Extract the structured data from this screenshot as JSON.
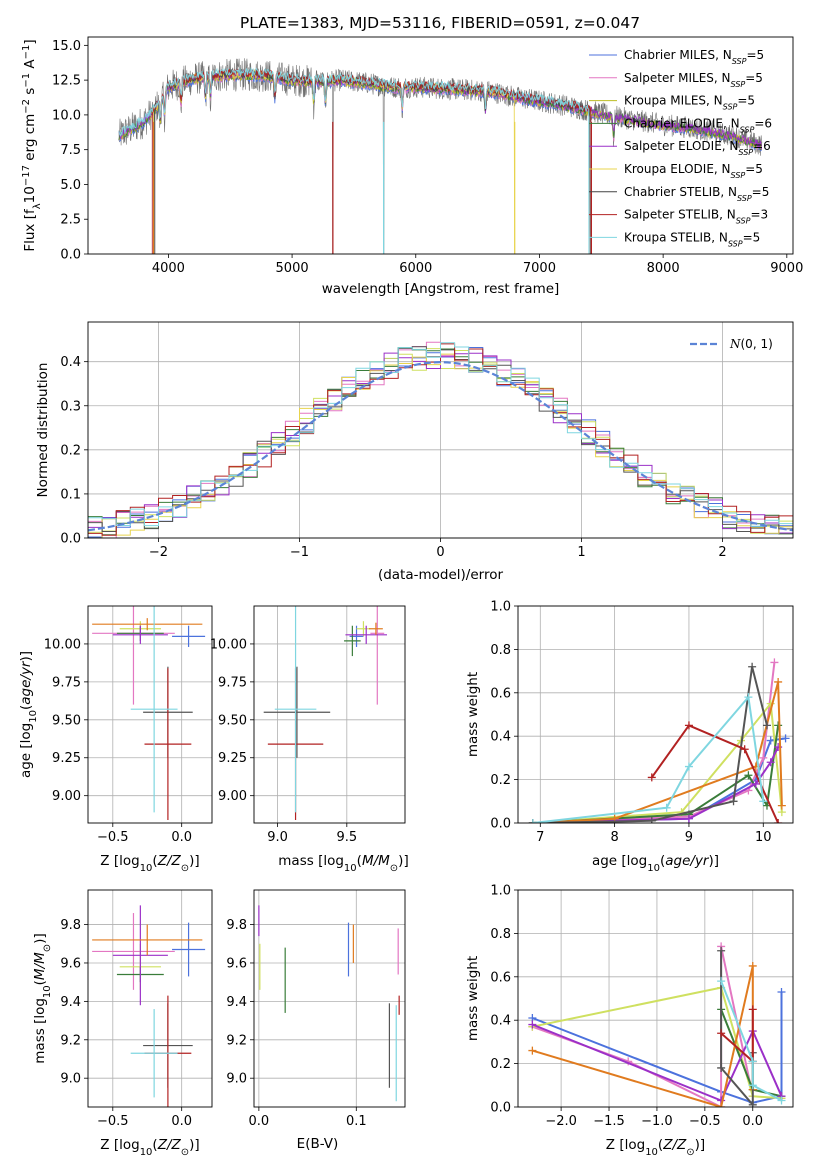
{
  "figure": {
    "title": "PLATE=1383, MJD=53116, FIBERID=0591, z=0.047"
  },
  "chart_data": [
    {
      "id": "spectrum",
      "type": "line",
      "title": "PLATE=1383, MJD=53116, FIBERID=0591, z=0.047",
      "xlabel": "wavelength [Angstrom, rest frame]",
      "ylabel": "Flux [f_λ10^-17 erg cm^-2 s^-1 A^-1]",
      "xlim": [
        3350,
        9050
      ],
      "ylim": [
        0,
        15.6
      ],
      "xticks": [
        4000,
        5000,
        6000,
        7000,
        8000,
        9000
      ],
      "yticks": [
        0.0,
        2.5,
        5.0,
        7.5,
        10.0,
        12.5,
        15.0
      ],
      "legend_position": "top-right",
      "legend": [
        {
          "label": "Chabrier MILES, N",
          "sub": "SSP",
          "suffix": "=5",
          "color": "#4c72dd"
        },
        {
          "label": "Salpeter MILES, N",
          "sub": "SSP",
          "suffix": "=5",
          "color": "#e377c2"
        },
        {
          "label": "Kroupa MILES, N",
          "sub": "SSP",
          "suffix": "=5",
          "color": "#bcbd22"
        },
        {
          "label": "Chabrier ELODIE, N",
          "sub": "SSP",
          "suffix": "=6",
          "color": "#3a7d3a"
        },
        {
          "label": "Salpeter ELODIE, N",
          "sub": "SSP",
          "suffix": "=6",
          "color": "#9b30c8"
        },
        {
          "label": "Kroupa ELODIE, N",
          "sub": "SSP",
          "suffix": "=5",
          "color": "#e8d44d"
        },
        {
          "label": "Chabrier STELIB, N",
          "sub": "SSP",
          "suffix": "=5",
          "color": "#444444"
        },
        {
          "label": "Salpeter STELIB, N",
          "sub": "SSP",
          "suffix": "=3",
          "color": "#b22222"
        },
        {
          "label": "Kroupa STELIB, N",
          "sub": "SSP",
          "suffix": "=5",
          "color": "#7fd6e0"
        }
      ],
      "continuum": {
        "x": [
          3600,
          3700,
          3800,
          3900,
          4000,
          4200,
          4400,
          4600,
          4800,
          5000,
          5200,
          5400,
          5600,
          5800,
          6000,
          6200,
          6400,
          6600,
          6800,
          7000,
          7200,
          7400,
          7600,
          7800,
          8000,
          8200,
          8400,
          8600,
          8800
        ],
        "y": [
          8.5,
          9.0,
          9.5,
          10.5,
          12.0,
          12.6,
          12.8,
          12.9,
          12.8,
          12.5,
          12.4,
          12.5,
          12.3,
          12.0,
          12.0,
          11.9,
          11.8,
          11.7,
          11.3,
          11.0,
          10.7,
          10.3,
          9.9,
          9.6,
          9.3,
          9.1,
          8.8,
          8.4,
          7.8
        ]
      },
      "data_range": [
        3600,
        8800
      ],
      "model_ends": {
        "Salpeter STELIB": [
          3870,
          7420
        ],
        "Chabrier STELIB": [
          3890,
          7410
        ],
        "Kroupa ELODIE": [
          3880,
          6800
        ],
        "Kroupa STELIB": [
          3600,
          7400
        ]
      },
      "deep_dips": [
        3880,
        5330,
        5740,
        6800,
        7420
      ]
    },
    {
      "id": "residuals",
      "type": "histogram",
      "xlabel": "(data-model)/error",
      "ylabel": "Normed distribution",
      "xlim": [
        -2.5,
        2.5
      ],
      "ylim": [
        0,
        0.49
      ],
      "xticks": [
        -2,
        -1,
        0,
        1,
        2
      ],
      "yticks": [
        0.0,
        0.1,
        0.2,
        0.3,
        0.4
      ],
      "grid": true,
      "legend_position": "top-right",
      "reference_curve": {
        "label": "N(0,1)",
        "mu": 0,
        "sigma": 1,
        "color": "#5b84d6"
      },
      "bin_width": 0.1,
      "series_colors": [
        "#4c72dd",
        "#e377c2",
        "#cfe060",
        "#3a7d3a",
        "#9b30c8",
        "#e8d44d",
        "#555555",
        "#b22222",
        "#7fd6e0"
      ]
    },
    {
      "id": "age_vs_Z",
      "type": "errorbar",
      "xlabel": "Z [log10(Z/Z☉)]",
      "ylabel": "age [log10(age/yr)]",
      "xlim": [
        -0.68,
        0.22
      ],
      "ylim": [
        8.82,
        10.25
      ],
      "xticks": [
        -0.5,
        0.0
      ],
      "yticks": [
        9.0,
        9.25,
        9.5,
        9.75,
        10.0
      ],
      "points": [
        {
          "x": 0.05,
          "xerr": 0.12,
          "y": 10.05,
          "yerr": 0.07,
          "color": "#4c72dd"
        },
        {
          "x": -0.35,
          "xerr": 0.3,
          "y": 10.07,
          "yerr": 0.47,
          "color": "#e377c2"
        },
        {
          "x": -0.3,
          "xerr": 0.15,
          "y": 10.1,
          "yerr": 0.05,
          "color": "#cfe060"
        },
        {
          "x": -0.3,
          "xerr": 0.17,
          "y": 10.07,
          "yerr": 0.05,
          "color": "#3a7d3a"
        },
        {
          "x": -0.3,
          "xerr": 0.2,
          "y": 10.06,
          "yerr": 0.06,
          "color": "#9b30c8"
        },
        {
          "x": -0.25,
          "xerr": 0.4,
          "y": 10.13,
          "yerr": 0.04,
          "color": "#e07b1f"
        },
        {
          "x": -0.1,
          "xerr": 0.18,
          "y": 9.55,
          "yerr": 0.3,
          "color": "#555555"
        },
        {
          "x": -0.1,
          "xerr": 0.17,
          "y": 9.34,
          "yerr": 0.5,
          "color": "#b22222"
        },
        {
          "x": -0.2,
          "xerr": 0.17,
          "y": 9.57,
          "yerr": 0.68,
          "color": "#7fd6e0"
        }
      ]
    },
    {
      "id": "age_vs_mass",
      "type": "errorbar",
      "xlabel": "mass [log10(M/M☉)]",
      "ylabel": "",
      "xlim": [
        8.83,
        9.92
      ],
      "ylim": [
        8.82,
        10.25
      ],
      "xticks": [
        9.0,
        9.5
      ],
      "yticks": [
        9.0,
        9.25,
        9.5,
        9.75,
        10.0
      ],
      "points": [
        {
          "x": 9.57,
          "xerr": 0.05,
          "y": 10.05,
          "yerr": 0.07,
          "color": "#4c72dd"
        },
        {
          "x": 9.72,
          "xerr": 0.05,
          "y": 10.07,
          "yerr": 0.47,
          "color": "#e377c2"
        },
        {
          "x": 9.62,
          "xerr": 0.05,
          "y": 10.1,
          "yerr": 0.05,
          "color": "#cfe060"
        },
        {
          "x": 9.54,
          "xerr": 0.06,
          "y": 10.02,
          "yerr": 0.1,
          "color": "#3a7d3a"
        },
        {
          "x": 9.64,
          "xerr": 0.15,
          "y": 10.06,
          "yerr": 0.06,
          "color": "#9b30c8"
        },
        {
          "x": 9.71,
          "xerr": 0.05,
          "y": 10.1,
          "yerr": 0.04,
          "color": "#e07b1f"
        },
        {
          "x": 9.14,
          "xerr": 0.24,
          "y": 9.55,
          "yerr": 0.3,
          "color": "#555555"
        },
        {
          "x": 9.13,
          "xerr": 0.2,
          "y": 9.34,
          "yerr": 0.5,
          "color": "#b22222"
        },
        {
          "x": 9.13,
          "xerr": 0.15,
          "y": 9.57,
          "yerr": 0.68,
          "color": "#7fd6e0"
        }
      ]
    },
    {
      "id": "mass_weight_vs_age",
      "type": "line",
      "xlabel": "age [log10(age/yr)]",
      "ylabel": "mass weight",
      "xlim": [
        6.7,
        10.4
      ],
      "ylim": [
        0,
        1
      ],
      "xticks": [
        7,
        8,
        9,
        10
      ],
      "yticks": [
        0.0,
        0.2,
        0.4,
        0.6,
        0.8,
        1.0
      ],
      "grid": true,
      "series": [
        {
          "color": "#4c72dd",
          "x": [
            6.9,
            9.0,
            9.9,
            10.1,
            10.3
          ],
          "y": [
            0.0,
            0.02,
            0.2,
            0.38,
            0.39
          ]
        },
        {
          "color": "#e377c2",
          "x": [
            6.9,
            9.0,
            9.8,
            10.0,
            10.15
          ],
          "y": [
            0.0,
            0.03,
            0.15,
            0.3,
            0.74
          ]
        },
        {
          "color": "#cfe060",
          "x": [
            6.9,
            8.9,
            9.7,
            10.1,
            10.25
          ],
          "y": [
            0.0,
            0.05,
            0.38,
            0.55,
            0.05
          ]
        },
        {
          "color": "#3a7d3a",
          "x": [
            6.9,
            9.0,
            9.8,
            10.05,
            10.2
          ],
          "y": [
            0.0,
            0.04,
            0.22,
            0.08,
            0.45
          ]
        },
        {
          "color": "#9b30c8",
          "x": [
            6.9,
            9.0,
            9.9,
            10.1,
            10.2
          ],
          "y": [
            0.0,
            0.02,
            0.18,
            0.28,
            0.35
          ]
        },
        {
          "color": "#e07b1f",
          "x": [
            6.9,
            8.0,
            9.9,
            10.2,
            10.25
          ],
          "y": [
            0.0,
            0.02,
            0.26,
            0.65,
            0.08
          ]
        },
        {
          "color": "#555555",
          "x": [
            6.9,
            8.5,
            9.6,
            9.85,
            10.05
          ],
          "y": [
            0.0,
            0.01,
            0.1,
            0.72,
            0.45
          ]
        },
        {
          "color": "#b22222",
          "x": [
            8.5,
            9.0,
            9.75,
            10.2
          ],
          "y": [
            0.21,
            0.45,
            0.34,
            0.0
          ]
        },
        {
          "color": "#7fd6e0",
          "x": [
            6.9,
            8.7,
            9.0,
            9.8,
            10.0
          ],
          "y": [
            0.0,
            0.07,
            0.26,
            0.58,
            0.1
          ]
        }
      ]
    },
    {
      "id": "mass_vs_Z",
      "type": "errorbar",
      "xlabel": "Z [log10(Z/Z☉)]",
      "ylabel": "mass [log10(M/M☉)]",
      "xlim": [
        -0.68,
        0.22
      ],
      "ylim": [
        8.85,
        9.98
      ],
      "xticks": [
        -0.5,
        0.0
      ],
      "yticks": [
        9.0,
        9.2,
        9.4,
        9.6,
        9.8
      ],
      "points": [
        {
          "x": 0.05,
          "xerr": 0.12,
          "y": 9.67,
          "yerr": 0.14,
          "color": "#4c72dd"
        },
        {
          "x": -0.35,
          "xerr": 0.3,
          "y": 9.66,
          "yerr": 0.2,
          "color": "#e377c2"
        },
        {
          "x": -0.3,
          "xerr": 0.15,
          "y": 9.58,
          "yerr": 0.12,
          "color": "#cfe060"
        },
        {
          "x": -0.3,
          "xerr": 0.17,
          "y": 9.54,
          "yerr": 0.04,
          "color": "#3a7d3a"
        },
        {
          "x": -0.3,
          "xerr": 0.2,
          "y": 9.64,
          "yerr": 0.26,
          "color": "#9b30c8"
        },
        {
          "x": -0.25,
          "xerr": 0.4,
          "y": 9.72,
          "yerr": 0.08,
          "color": "#e07b1f"
        },
        {
          "x": -0.1,
          "xerr": 0.18,
          "y": 9.17,
          "yerr": 0.22,
          "color": "#555555"
        },
        {
          "x": -0.1,
          "xerr": 0.17,
          "y": 9.13,
          "yerr": 0.3,
          "color": "#b22222"
        },
        {
          "x": -0.2,
          "xerr": 0.17,
          "y": 9.13,
          "yerr": 0.23,
          "color": "#7fd6e0"
        }
      ]
    },
    {
      "id": "mass_vs_ebv",
      "type": "errorbar",
      "xlabel": "E(B-V)",
      "ylabel": "",
      "xlim": [
        -0.005,
        0.15
      ],
      "ylim": [
        8.85,
        9.98
      ],
      "xticks": [
        0.0,
        0.1
      ],
      "yticks": [
        9.0,
        9.2,
        9.4,
        9.6,
        9.8
      ],
      "points": [
        {
          "x": 0.092,
          "xerr": 0,
          "y": 9.67,
          "yerr": 0.14,
          "color": "#4c72dd"
        },
        {
          "x": 0.143,
          "xerr": 0,
          "y": 9.66,
          "yerr": 0.12,
          "color": "#e377c2"
        },
        {
          "x": 0.001,
          "xerr": 0,
          "y": 9.58,
          "yerr": 0.12,
          "color": "#cfe060"
        },
        {
          "x": 0.027,
          "xerr": 0,
          "y": 9.51,
          "yerr": 0.17,
          "color": "#3a7d3a"
        },
        {
          "x": 0.0,
          "xerr": 0,
          "y": 9.82,
          "yerr": 0.08,
          "color": "#9b30c8"
        },
        {
          "x": 0.097,
          "xerr": 0,
          "y": 9.7,
          "yerr": 0.1,
          "color": "#e07b1f"
        },
        {
          "x": 0.134,
          "xerr": 0,
          "y": 9.17,
          "yerr": 0.22,
          "color": "#555555"
        },
        {
          "x": 0.144,
          "xerr": 0,
          "y": 9.38,
          "yerr": 0.05,
          "color": "#b22222"
        },
        {
          "x": 0.141,
          "xerr": 0,
          "y": 9.13,
          "yerr": 0.25,
          "color": "#7fd6e0"
        }
      ]
    },
    {
      "id": "mass_weight_vs_Z",
      "type": "line",
      "xlabel": "Z [log10(Z/Z☉)]",
      "ylabel": "mass weight",
      "xlim": [
        -2.45,
        0.42
      ],
      "ylim": [
        0,
        1
      ],
      "xticks": [
        -2.0,
        -1.5,
        -1.0,
        -0.5,
        0.0
      ],
      "yticks": [
        0.0,
        0.2,
        0.4,
        0.6,
        0.8,
        1.0
      ],
      "grid": true,
      "series": [
        {
          "color": "#4c72dd",
          "x": [
            -2.3,
            -0.33,
            0.0,
            0.3,
            0.3
          ],
          "y": [
            0.41,
            0.07,
            0.02,
            0.05,
            0.53
          ]
        },
        {
          "color": "#e377c2",
          "x": [
            -2.3,
            -1.3,
            -0.33,
            -0.33,
            0.0
          ],
          "y": [
            0.37,
            0.21,
            0.0,
            0.74,
            0.05
          ]
        },
        {
          "color": "#cfe060",
          "x": [
            -2.3,
            -0.33,
            0.0,
            0.3
          ],
          "y": [
            0.37,
            0.55,
            0.05,
            0.04
          ]
        },
        {
          "color": "#3a7d3a",
          "x": [
            -0.33,
            0.0,
            0.3
          ],
          "y": [
            0.45,
            0.08,
            0.05
          ]
        },
        {
          "color": "#9b30c8",
          "x": [
            -2.3,
            -0.33,
            0.0,
            0.3
          ],
          "y": [
            0.38,
            0.03,
            0.35,
            0.05
          ]
        },
        {
          "color": "#e07b1f",
          "x": [
            -2.3,
            -0.33,
            0.0,
            0.0
          ],
          "y": [
            0.26,
            0.0,
            0.65,
            0.08
          ]
        },
        {
          "color": "#555555",
          "x": [
            -0.33,
            -0.33,
            0.0,
            0.0
          ],
          "y": [
            0.72,
            0.18,
            0.01,
            0.25
          ]
        },
        {
          "color": "#b22222",
          "x": [
            -0.33,
            0.0,
            0.0
          ],
          "y": [
            0.34,
            0.21,
            0.45
          ]
        },
        {
          "color": "#7fd6e0",
          "x": [
            -0.33,
            0.0,
            0.0,
            0.3
          ],
          "y": [
            0.58,
            0.21,
            0.1,
            0.03
          ]
        }
      ]
    }
  ]
}
